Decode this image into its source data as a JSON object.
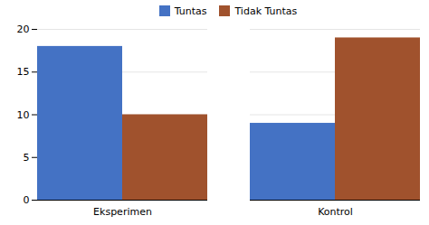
{
  "chart_data": {
    "type": "bar",
    "categories": [
      "Eksperimen",
      "Kontrol"
    ],
    "series": [
      {
        "name": "Tuntas",
        "color": "#4472C4",
        "values": [
          18,
          9
        ]
      },
      {
        "name": "Tidak Tuntas",
        "color": "#A0522D",
        "values": [
          10,
          19
        ]
      }
    ],
    "ylim": [
      0,
      20
    ],
    "yticks": [
      0,
      5,
      10,
      15,
      20
    ],
    "grid": true,
    "legend": "upper center"
  }
}
